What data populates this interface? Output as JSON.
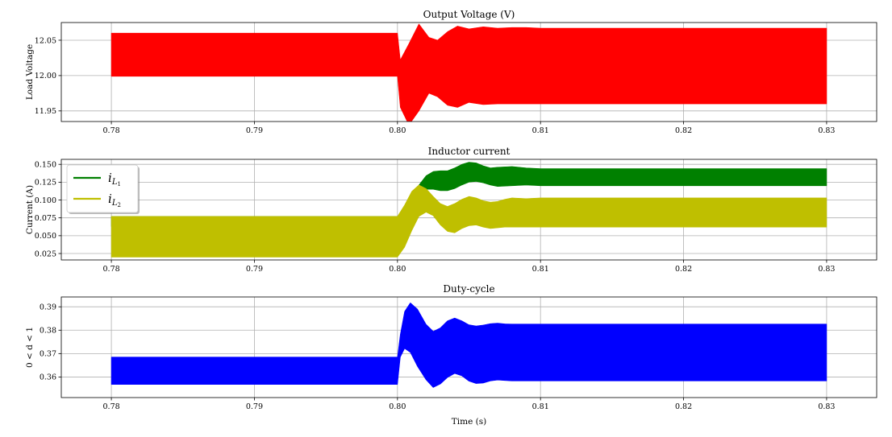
{
  "chart_data": [
    {
      "type": "area",
      "title": "Output Voltage (V)",
      "xlabel": "",
      "ylabel": "Load Voltage",
      "xlim": [
        0.7765,
        0.8335
      ],
      "ylim": [
        11.935,
        12.075
      ],
      "xticks": [
        "0.78",
        "0.79",
        "0.80",
        "0.81",
        "0.82",
        "0.83"
      ],
      "xtick_values": [
        0.78,
        0.79,
        0.8,
        0.81,
        0.82,
        0.83
      ],
      "yticks": [
        "11.95",
        "12.00",
        "12.05"
      ],
      "ytick_values": [
        11.95,
        12.0,
        12.05
      ],
      "grid": true,
      "series": [
        {
          "color": "#ff0000",
          "x_range": [
            0.78,
            0.83
          ],
          "envelope": {
            "x": [
              0.78,
              0.8,
              0.8002,
              0.8008,
              0.8015,
              0.8022,
              0.8028,
              0.8035,
              0.8042,
              0.805,
              0.806,
              0.807,
              0.808,
              0.809,
              0.81,
              0.83
            ],
            "upper": [
              12.06,
              12.06,
              12.022,
              12.045,
              12.073,
              12.054,
              12.05,
              12.062,
              12.07,
              12.066,
              12.069,
              12.067,
              12.068,
              12.068,
              12.067,
              12.067
            ],
            "lower": [
              11.999,
              11.999,
              11.955,
              11.93,
              11.95,
              11.975,
              11.97,
              11.958,
              11.955,
              11.962,
              11.959,
              11.96,
              11.96,
              11.96,
              11.96,
              11.96
            ]
          }
        }
      ]
    },
    {
      "type": "area",
      "title": "Inductor current",
      "xlabel": "",
      "ylabel": "Current (A)",
      "xlim": [
        0.7765,
        0.8335
      ],
      "ylim": [
        0.016,
        0.157
      ],
      "xticks": [
        "0.78",
        "0.79",
        "0.80",
        "0.81",
        "0.82",
        "0.83"
      ],
      "xtick_values": [
        0.78,
        0.79,
        0.8,
        0.81,
        0.82,
        0.83
      ],
      "yticks": [
        "0.025",
        "0.050",
        "0.075",
        "0.100",
        "0.125",
        "0.150"
      ],
      "ytick_values": [
        0.025,
        0.05,
        0.075,
        0.1,
        0.125,
        0.15
      ],
      "grid": true,
      "legend": {
        "placement": "upper left"
      },
      "series": [
        {
          "name": "i",
          "sub": "L",
          "subsub": "1",
          "color": "#008000",
          "envelope": {
            "x": [
              0.78,
              0.8,
              0.8005,
              0.801,
              0.8015,
              0.802,
              0.8025,
              0.803,
              0.8035,
              0.804,
              0.8045,
              0.805,
              0.8055,
              0.806,
              0.8065,
              0.807,
              0.808,
              0.809,
              0.81,
              0.83
            ],
            "upper": [
              0.077,
              0.077,
              0.088,
              0.104,
              0.121,
              0.134,
              0.14,
              0.141,
              0.141,
              0.145,
              0.15,
              0.153,
              0.152,
              0.148,
              0.145,
              0.146,
              0.147,
              0.145,
              0.144,
              0.144
            ],
            "lower": [
              0.063,
              0.063,
              0.074,
              0.09,
              0.105,
              0.115,
              0.115,
              0.113,
              0.113,
              0.116,
              0.121,
              0.125,
              0.126,
              0.124,
              0.121,
              0.119,
              0.12,
              0.121,
              0.12,
              0.12
            ]
          }
        },
        {
          "name": "i",
          "sub": "L",
          "subsub": "2",
          "color": "#bfbf00",
          "envelope": {
            "x": [
              0.78,
              0.8,
              0.8005,
              0.801,
              0.8015,
              0.802,
              0.8025,
              0.803,
              0.8035,
              0.804,
              0.8045,
              0.805,
              0.8055,
              0.806,
              0.8065,
              0.807,
              0.8075,
              0.808,
              0.809,
              0.81,
              0.83
            ],
            "upper": [
              0.077,
              0.077,
              0.093,
              0.112,
              0.121,
              0.116,
              0.105,
              0.095,
              0.091,
              0.095,
              0.101,
              0.105,
              0.103,
              0.099,
              0.097,
              0.098,
              0.101,
              0.103,
              0.102,
              0.103,
              0.103
            ],
            "lower": [
              0.02,
              0.02,
              0.034,
              0.057,
              0.077,
              0.083,
              0.078,
              0.065,
              0.056,
              0.054,
              0.06,
              0.064,
              0.065,
              0.062,
              0.06,
              0.061,
              0.062,
              0.062,
              0.062,
              0.062,
              0.062
            ]
          }
        }
      ]
    },
    {
      "type": "area",
      "title": "Duty-cycle",
      "xlabel": "Time (s)",
      "ylabel": "0 < d < 1",
      "xlim": [
        0.7765,
        0.8335
      ],
      "ylim": [
        0.3512,
        0.3942
      ],
      "xticks": [
        "0.78",
        "0.79",
        "0.80",
        "0.81",
        "0.82",
        "0.83"
      ],
      "xtick_values": [
        0.78,
        0.79,
        0.8,
        0.81,
        0.82,
        0.83
      ],
      "yticks": [
        "0.36",
        "0.37",
        "0.38",
        "0.39"
      ],
      "ytick_values": [
        0.36,
        0.37,
        0.38,
        0.39
      ],
      "grid": true,
      "series": [
        {
          "color": "#0000ff",
          "envelope": {
            "x": [
              0.78,
              0.8,
              0.8002,
              0.8005,
              0.8009,
              0.8014,
              0.802,
              0.8025,
              0.803,
              0.8035,
              0.804,
              0.8045,
              0.805,
              0.8055,
              0.806,
              0.8065,
              0.807,
              0.8075,
              0.808,
              0.81,
              0.83
            ],
            "upper": [
              0.3685,
              0.3685,
              0.3782,
              0.388,
              0.3917,
              0.389,
              0.3825,
              0.3795,
              0.381,
              0.384,
              0.3852,
              0.384,
              0.3823,
              0.3818,
              0.3822,
              0.3828,
              0.383,
              0.3827,
              0.3826,
              0.3826,
              0.3826
            ],
            "lower": [
              0.3568,
              0.3568,
              0.3685,
              0.3722,
              0.3705,
              0.3645,
              0.3588,
              0.3555,
              0.357,
              0.3598,
              0.3615,
              0.3605,
              0.3582,
              0.3572,
              0.3574,
              0.3583,
              0.3587,
              0.3585,
              0.3583,
              0.3583,
              0.3583
            ]
          }
        }
      ]
    }
  ]
}
